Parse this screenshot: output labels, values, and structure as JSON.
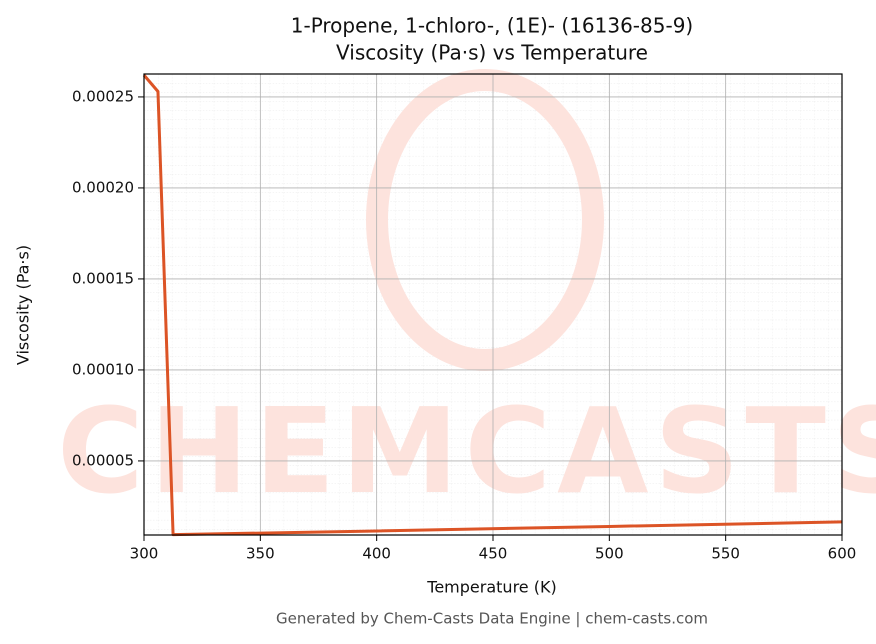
{
  "chart_data": {
    "type": "line",
    "title": "1-Propene, 1-chloro-, (1E)- (16136-85-9)",
    "subtitle": "Viscosity (Pa·s) vs Temperature",
    "x_label": "Temperature (K)",
    "y_label": "Viscosity (Pa·s)",
    "watermark": "CHEMCASTS",
    "footer": "Generated by Chem-Casts Data Engine | chem-casts.com",
    "x": [
      300,
      306,
      312.5,
      400,
      500,
      600
    ],
    "series": [
      {
        "name": "Viscosity",
        "color": "#dc5426",
        "values": [
          0.000262,
          0.000253,
          9.5e-06,
          1.15e-05,
          1.4e-05,
          1.65e-05
        ]
      }
    ],
    "xlim": [
      300,
      600
    ],
    "ylim": [
      9.3e-06,
      0.0002626
    ],
    "xticks": [
      300,
      350,
      400,
      450,
      500,
      550,
      600
    ],
    "yticks": [
      5e-05,
      {
        "value": 0.0001,
        "label": "0.00010"
      },
      0.00015,
      {
        "value": 0.0002,
        "label": "0.00020"
      },
      0.00025
    ],
    "grid": true
  }
}
